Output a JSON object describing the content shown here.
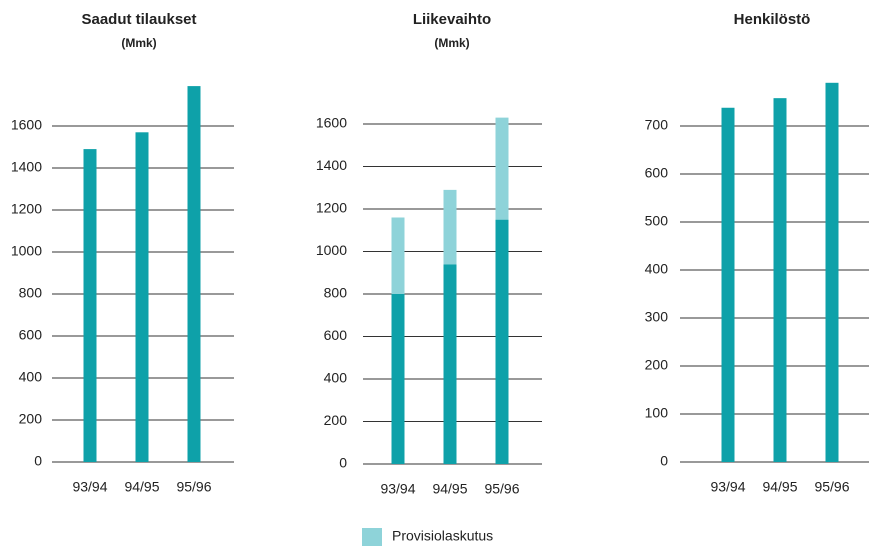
{
  "chart_data": [
    {
      "type": "bar",
      "title": "Saadut tilaukset",
      "subtitle": "(Mmk)",
      "categories": [
        "93/94",
        "94/95",
        "95/96"
      ],
      "values": [
        1490,
        1570,
        1790
      ],
      "color": "#0ea1a9",
      "ylim": [
        0,
        1800
      ],
      "yticks": [
        0,
        200,
        400,
        600,
        800,
        1000,
        1200,
        1400,
        1600
      ],
      "grid": true
    },
    {
      "type": "stacked-bar",
      "title": "Liikevaihto",
      "subtitle": "(Mmk)",
      "categories": [
        "93/94",
        "94/95",
        "95/96"
      ],
      "series": [
        {
          "color": "#0ea1a9",
          "values": [
            800,
            940,
            1150
          ]
        },
        {
          "name": "Provisiolaskutus",
          "color": "#8ed3d9",
          "values": [
            360,
            350,
            480
          ]
        }
      ],
      "ylim": [
        0,
        1650
      ],
      "yticks": [
        0,
        200,
        400,
        600,
        800,
        1000,
        1200,
        1400,
        1600
      ],
      "grid": true
    },
    {
      "type": "bar",
      "title": "Henkilöstö",
      "categories": [
        "93/94",
        "94/95",
        "95/96"
      ],
      "values": [
        738,
        758,
        790
      ],
      "color": "#0ea1a9",
      "ylim": [
        0,
        800
      ],
      "yticks": [
        0,
        100,
        200,
        300,
        400,
        500,
        600,
        700
      ],
      "grid": true
    }
  ]
}
